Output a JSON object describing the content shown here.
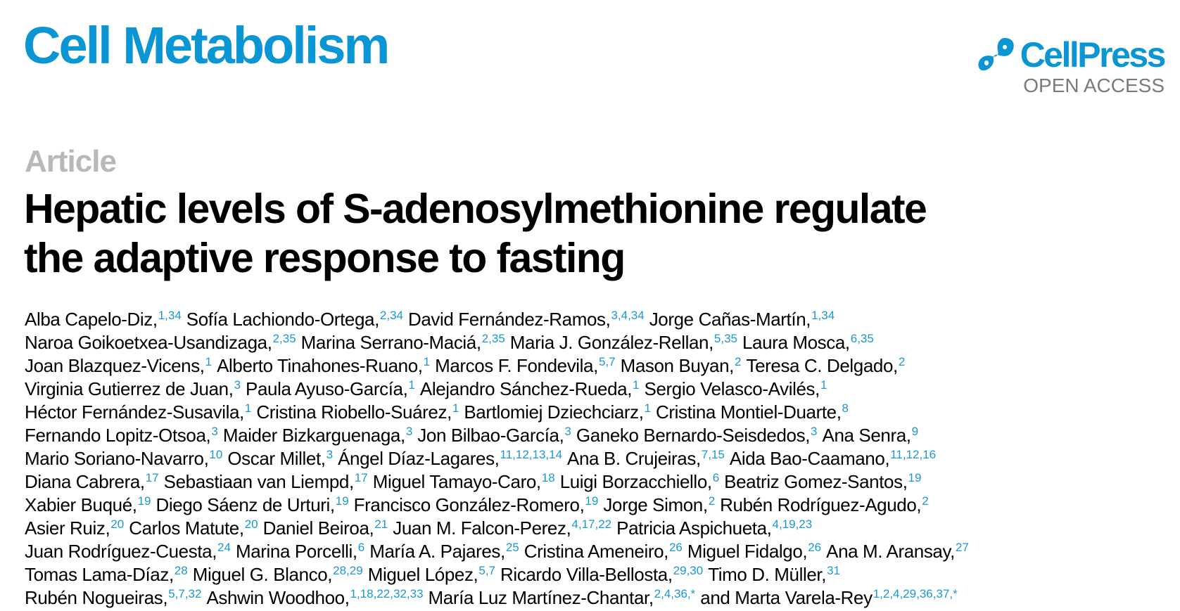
{
  "header": {
    "journal": "Cell Metabolism",
    "publisher": "CellPress",
    "access": "OPEN ACCESS",
    "brand_color": "#0a96d4"
  },
  "article": {
    "type": "Article",
    "title_lines": [
      "Hepatic levels of S-adenosylmethionine regulate",
      "the adaptive response to fasting"
    ]
  },
  "authors": {
    "connector": "and",
    "lines": [
      [
        [
          "Alba Capelo-Diz,",
          "1,34"
        ],
        [
          "Sofía Lachiondo-Ortega,",
          "2,34"
        ],
        [
          "David Fernández-Ramos,",
          "3,4,34"
        ],
        [
          "Jorge Cañas-Martín,",
          "1,34"
        ]
      ],
      [
        [
          "Naroa Goikoetxea-Usandizaga,",
          "2,35"
        ],
        [
          "Marina Serrano-Maciá,",
          "2,35"
        ],
        [
          "Maria J. González-Rellan,",
          "5,35"
        ],
        [
          "Laura Mosca,",
          "6,35"
        ]
      ],
      [
        [
          "Joan Blazquez-Vicens,",
          "1"
        ],
        [
          "Alberto Tinahones-Ruano,",
          "1"
        ],
        [
          "Marcos F. Fondevila,",
          "5,7"
        ],
        [
          "Mason Buyan,",
          "2"
        ],
        [
          "Teresa C. Delgado,",
          "2"
        ]
      ],
      [
        [
          "Virginia Gutierrez de Juan,",
          "3"
        ],
        [
          "Paula Ayuso-García,",
          "1"
        ],
        [
          "Alejandro Sánchez-Rueda,",
          "1"
        ],
        [
          "Sergio Velasco-Avilés,",
          "1"
        ]
      ],
      [
        [
          "Héctor Fernández-Susavila,",
          "1"
        ],
        [
          "Cristina Riobello-Suárez,",
          "1"
        ],
        [
          "Bartlomiej Dziechciarz,",
          "1"
        ],
        [
          "Cristina Montiel-Duarte,",
          "8"
        ]
      ],
      [
        [
          "Fernando Lopitz-Otsoa,",
          "3"
        ],
        [
          "Maider Bizkarguenaga,",
          "3"
        ],
        [
          "Jon Bilbao-García,",
          "3"
        ],
        [
          "Ganeko Bernardo-Seisdedos,",
          "3"
        ],
        [
          "Ana Senra,",
          "9"
        ]
      ],
      [
        [
          "Mario Soriano-Navarro,",
          "10"
        ],
        [
          "Oscar Millet,",
          "3"
        ],
        [
          "Ángel Díaz-Lagares,",
          "11,12,13,14"
        ],
        [
          "Ana B. Crujeiras,",
          "7,15"
        ],
        [
          "Aida Bao-Caamano,",
          "11,12,16"
        ]
      ],
      [
        [
          "Diana Cabrera,",
          "17"
        ],
        [
          "Sebastiaan van Liempd,",
          "17"
        ],
        [
          "Miguel Tamayo-Caro,",
          "18"
        ],
        [
          "Luigi Borzacchiello,",
          "6"
        ],
        [
          "Beatriz Gomez-Santos,",
          "19"
        ]
      ],
      [
        [
          "Xabier Buqué,",
          "19"
        ],
        [
          "Diego Sáenz de Urturi,",
          "19"
        ],
        [
          "Francisco González-Romero,",
          "19"
        ],
        [
          "Jorge Simon,",
          "2"
        ],
        [
          "Rubén Rodríguez-Agudo,",
          "2"
        ]
      ],
      [
        [
          "Asier Ruiz,",
          "20"
        ],
        [
          "Carlos Matute,",
          "20"
        ],
        [
          "Daniel Beiroa,",
          "21"
        ],
        [
          "Juan M. Falcon-Perez,",
          "4,17,22"
        ],
        [
          "Patricia Aspichueta,",
          "4,19,23"
        ]
      ],
      [
        [
          "Juan Rodríguez-Cuesta,",
          "24"
        ],
        [
          "Marina Porcelli,",
          "6"
        ],
        [
          "María A. Pajares,",
          "25"
        ],
        [
          "Cristina Ameneiro,",
          "26"
        ],
        [
          "Miguel Fidalgo,",
          "26"
        ],
        [
          "Ana M. Aransay,",
          "27"
        ]
      ],
      [
        [
          "Tomas Lama-Díaz,",
          "28"
        ],
        [
          "Miguel G. Blanco,",
          "28,29"
        ],
        [
          "Miguel López,",
          "5,7"
        ],
        [
          "Ricardo Villa-Bellosta,",
          "29,30"
        ],
        [
          "Timo D. Müller,",
          "31"
        ]
      ],
      [
        [
          "Rubén Nogueiras,",
          "5,7,32"
        ],
        [
          "Ashwin Woodhoo,",
          "1,18,22,32,33"
        ],
        [
          "María Luz Martínez-Chantar,",
          "2,4,36,*"
        ],
        [
          "Marta Varela-Rey",
          "1,2,4,29,36,37,*"
        ]
      ]
    ]
  }
}
